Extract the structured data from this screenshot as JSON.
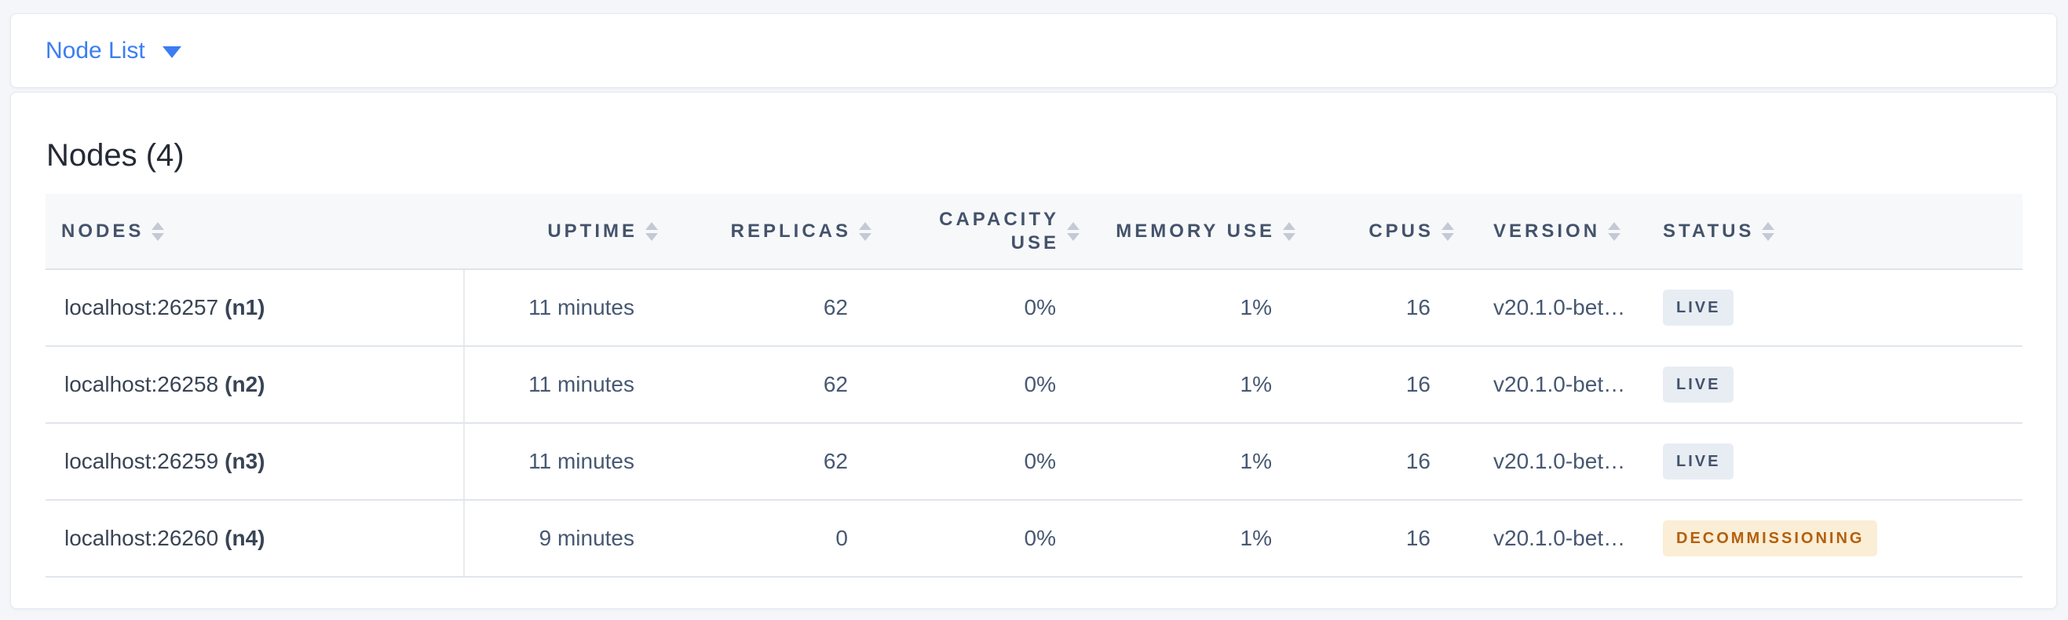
{
  "toolbar": {
    "dropdown_label": "Node List",
    "chevron_icon": "chevron-down"
  },
  "panel": {
    "title": "Nodes (4)"
  },
  "table": {
    "columns": [
      {
        "label": "NODES",
        "sortable": true,
        "align": "left"
      },
      {
        "label": "UPTIME",
        "sortable": true,
        "align": "right"
      },
      {
        "label": "REPLICAS",
        "sortable": true,
        "align": "right"
      },
      {
        "label": "CAPACITY USE",
        "sortable": true,
        "align": "right"
      },
      {
        "label": "MEMORY USE",
        "sortable": true,
        "align": "right"
      },
      {
        "label": "CPUS",
        "sortable": true,
        "align": "right"
      },
      {
        "label": "VERSION",
        "sortable": true,
        "align": "left"
      },
      {
        "label": "STATUS",
        "sortable": true,
        "align": "left"
      }
    ],
    "rows": [
      {
        "node": "localhost:26257",
        "node_id": "(n1)",
        "uptime": "11 minutes",
        "replicas": "62",
        "capacity_use": "0%",
        "memory_use": "1%",
        "cpus": "16",
        "version": "v20.1.0-bet…",
        "status": "LIVE",
        "status_type": "live"
      },
      {
        "node": "localhost:26258",
        "node_id": "(n2)",
        "uptime": "11 minutes",
        "replicas": "62",
        "capacity_use": "0%",
        "memory_use": "1%",
        "cpus": "16",
        "version": "v20.1.0-bet…",
        "status": "LIVE",
        "status_type": "live"
      },
      {
        "node": "localhost:26259",
        "node_id": "(n3)",
        "uptime": "11 minutes",
        "replicas": "62",
        "capacity_use": "0%",
        "memory_use": "1%",
        "cpus": "16",
        "version": "v20.1.0-bet…",
        "status": "LIVE",
        "status_type": "live"
      },
      {
        "node": "localhost:26260",
        "node_id": "(n4)",
        "uptime": "9 minutes",
        "replicas": "0",
        "capacity_use": "0%",
        "memory_use": "1%",
        "cpus": "16",
        "version": "v20.1.0-bet…",
        "status": "DECOMMISSIONING",
        "status_type": "decommissioning"
      }
    ]
  },
  "colors": {
    "page_bg": "#f4f6fa",
    "accent_blue": "#3b7df2",
    "header_band_bg": "#f7f8fa",
    "header_text": "#44536b",
    "cell_text": "#475872",
    "node_text": "#394455",
    "live_badge_bg": "#e8edf4",
    "live_badge_text": "#44536b",
    "decommissioning_badge_bg": "#fbeed6",
    "decommissioning_badge_text": "#b2600f"
  }
}
